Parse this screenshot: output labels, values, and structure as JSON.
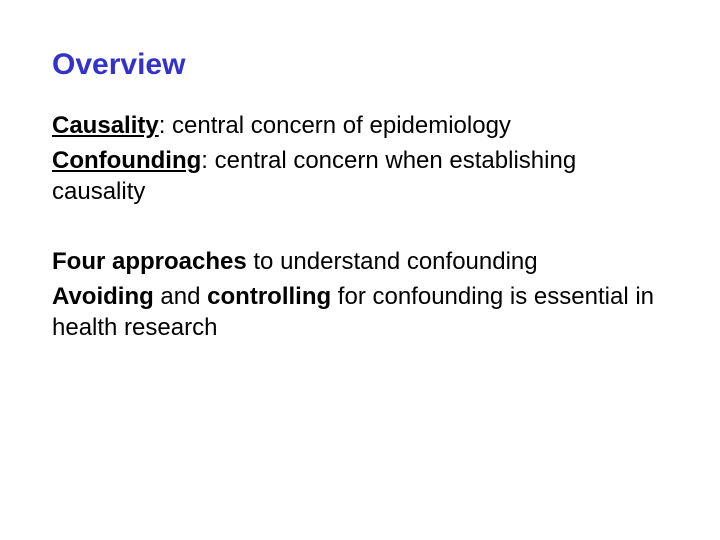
{
  "slide": {
    "title": "Overview",
    "title_color": "#3333cc",
    "title_fontsize": 30,
    "body_fontsize": 24,
    "body_color": "#000000",
    "background_color": "#ffffff",
    "group1": {
      "line1": {
        "term": "Causality",
        "rest": ": central concern of epidemiology"
      },
      "line2": {
        "term": "Confounding",
        "rest": ": central concern when establishing causality"
      }
    },
    "group2": {
      "line1": {
        "bold1": "Four approaches",
        "rest": " to understand confounding"
      },
      "line2": {
        "bold1": "Avoiding",
        "mid": " and ",
        "bold2": "controlling",
        "rest": " for confounding is essential in health research"
      }
    }
  }
}
